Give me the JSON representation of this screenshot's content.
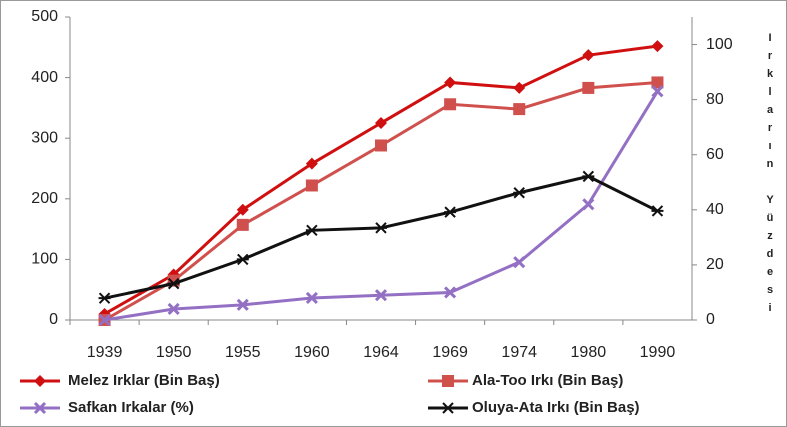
{
  "chart_data": {
    "type": "line",
    "categories": [
      "1939",
      "1950",
      "1955",
      "1960",
      "1964",
      "1969",
      "1974",
      "1980",
      "1990"
    ],
    "y2_label": "Irkların Yüzdesi",
    "ylim": [
      0,
      500
    ],
    "yticks": [
      0,
      100,
      200,
      300,
      400,
      500
    ],
    "y2lim": [
      0,
      110
    ],
    "y2ticks": [
      0,
      20,
      40,
      60,
      80,
      100
    ],
    "series": [
      {
        "name": "Melez Irklar (Bin Baş)",
        "color": "#d01010",
        "marker": "diamond",
        "values": [
          10,
          75,
          182,
          258,
          325,
          392,
          383,
          437,
          452
        ]
      },
      {
        "name": "Ala-Too Irkı (Bin Baş)",
        "color": "#d0504d",
        "marker": "square",
        "values": [
          0,
          65,
          157,
          222,
          288,
          356,
          348,
          383,
          392
        ]
      },
      {
        "name": "Safkan Irkalar (%)",
        "color": "#9370c4",
        "marker": "x",
        "axis": "y2",
        "values": [
          0,
          4,
          5.5,
          8,
          9,
          10,
          21,
          42,
          83
        ]
      },
      {
        "name": "Oluya-Ata Irkı (Bin Baş)",
        "color": "#111111",
        "marker": "star",
        "values": [
          36,
          60,
          100,
          148,
          152,
          178,
          210,
          237,
          180
        ]
      }
    ]
  }
}
